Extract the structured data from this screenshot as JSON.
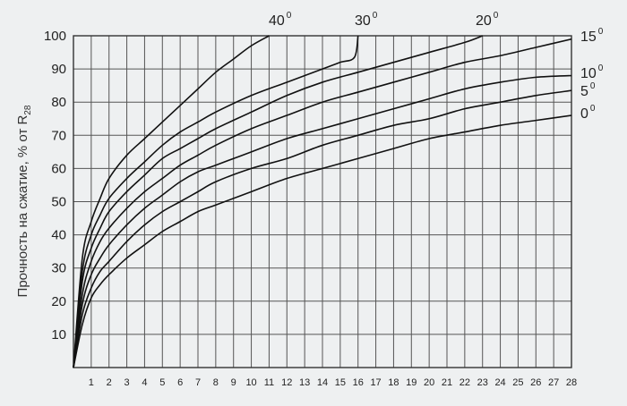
{
  "chart_data": {
    "type": "line",
    "ylabel": "Прочность на сжатие, % от R",
    "ylabel_sub": "28",
    "x_ticks": [
      1,
      2,
      3,
      4,
      5,
      6,
      7,
      8,
      9,
      10,
      11,
      12,
      13,
      14,
      15,
      16,
      17,
      18,
      19,
      20,
      21,
      22,
      23,
      24,
      25,
      26,
      27,
      28
    ],
    "y_ticks": [
      10,
      20,
      30,
      40,
      50,
      60,
      70,
      80,
      90,
      100
    ],
    "xlim": [
      0,
      28
    ],
    "ylim": [
      0,
      100
    ],
    "grid": true,
    "series": [
      {
        "name": "0",
        "unit": "0",
        "points": [
          [
            0,
            0
          ],
          [
            0.5,
            13
          ],
          [
            1,
            21
          ],
          [
            1.5,
            25
          ],
          [
            2,
            28
          ],
          [
            3,
            33
          ],
          [
            4,
            37
          ],
          [
            5,
            41
          ],
          [
            6,
            44
          ],
          [
            7,
            47
          ],
          [
            8,
            49
          ],
          [
            10,
            53
          ],
          [
            12,
            57
          ],
          [
            14,
            60
          ],
          [
            16,
            63
          ],
          [
            18,
            66
          ],
          [
            20,
            69
          ],
          [
            22,
            71
          ],
          [
            24,
            73
          ],
          [
            26,
            74.5
          ],
          [
            28,
            76
          ]
        ]
      },
      {
        "name": "5",
        "unit": "0",
        "points": [
          [
            0,
            0
          ],
          [
            0.5,
            16
          ],
          [
            1,
            24
          ],
          [
            1.5,
            29
          ],
          [
            2,
            32
          ],
          [
            3,
            38
          ],
          [
            4,
            43
          ],
          [
            5,
            47
          ],
          [
            6,
            50
          ],
          [
            7,
            53
          ],
          [
            8,
            56
          ],
          [
            10,
            60
          ],
          [
            12,
            63
          ],
          [
            14,
            67
          ],
          [
            16,
            70
          ],
          [
            18,
            73
          ],
          [
            20,
            75
          ],
          [
            22,
            78
          ],
          [
            24,
            80
          ],
          [
            26,
            82
          ],
          [
            28,
            83.5
          ]
        ]
      },
      {
        "name": "10",
        "unit": "0",
        "points": [
          [
            0,
            0
          ],
          [
            0.5,
            19
          ],
          [
            1,
            28
          ],
          [
            1.5,
            33
          ],
          [
            2,
            37
          ],
          [
            3,
            43
          ],
          [
            4,
            48
          ],
          [
            5,
            52
          ],
          [
            6,
            56
          ],
          [
            7,
            59
          ],
          [
            8,
            61
          ],
          [
            10,
            65
          ],
          [
            12,
            69
          ],
          [
            14,
            72
          ],
          [
            16,
            75
          ],
          [
            18,
            78
          ],
          [
            20,
            81
          ],
          [
            22,
            84
          ],
          [
            24,
            86
          ],
          [
            26,
            87.5
          ],
          [
            28,
            88
          ]
        ]
      },
      {
        "name": "15",
        "unit": "0",
        "points": [
          [
            0,
            0
          ],
          [
            0.5,
            22
          ],
          [
            1,
            32
          ],
          [
            1.5,
            38
          ],
          [
            2,
            42
          ],
          [
            3,
            48
          ],
          [
            4,
            53
          ],
          [
            5,
            57
          ],
          [
            6,
            61
          ],
          [
            7,
            64
          ],
          [
            8,
            67
          ],
          [
            10,
            72
          ],
          [
            12,
            76
          ],
          [
            14,
            80
          ],
          [
            16,
            83
          ],
          [
            18,
            86
          ],
          [
            20,
            89
          ],
          [
            22,
            92
          ],
          [
            24,
            94
          ],
          [
            26,
            96.5
          ],
          [
            28,
            99
          ]
        ]
      },
      {
        "name": "20",
        "unit": "0",
        "points": [
          [
            0,
            0
          ],
          [
            0.5,
            26
          ],
          [
            1,
            36
          ],
          [
            1.5,
            42
          ],
          [
            2,
            47
          ],
          [
            3,
            53
          ],
          [
            4,
            58
          ],
          [
            5,
            63
          ],
          [
            6,
            66
          ],
          [
            7,
            69
          ],
          [
            8,
            72
          ],
          [
            10,
            77
          ],
          [
            12,
            82
          ],
          [
            14,
            86
          ],
          [
            16,
            89
          ],
          [
            18,
            92
          ],
          [
            20,
            95
          ],
          [
            22,
            98
          ],
          [
            23,
            100
          ]
        ]
      },
      {
        "name": "30",
        "unit": "0",
        "points": [
          [
            0,
            0
          ],
          [
            0.5,
            29
          ],
          [
            1,
            40
          ],
          [
            1.5,
            46
          ],
          [
            2,
            51
          ],
          [
            3,
            57
          ],
          [
            4,
            62
          ],
          [
            5,
            67
          ],
          [
            6,
            71
          ],
          [
            7,
            74
          ],
          [
            8,
            77
          ],
          [
            10,
            82
          ],
          [
            12,
            86
          ],
          [
            14,
            90
          ],
          [
            15,
            92
          ],
          [
            15.8,
            93.5
          ],
          [
            16,
            100
          ]
        ]
      },
      {
        "name": "40",
        "unit": "0",
        "points": [
          [
            0,
            0
          ],
          [
            0.5,
            33
          ],
          [
            1,
            44
          ],
          [
            1.5,
            51
          ],
          [
            2,
            57
          ],
          [
            3,
            64
          ],
          [
            4,
            69
          ],
          [
            5,
            74
          ],
          [
            6,
            79
          ],
          [
            7,
            84
          ],
          [
            8,
            89
          ],
          [
            9,
            93
          ],
          [
            10,
            97
          ],
          [
            11,
            100
          ]
        ]
      }
    ]
  }
}
